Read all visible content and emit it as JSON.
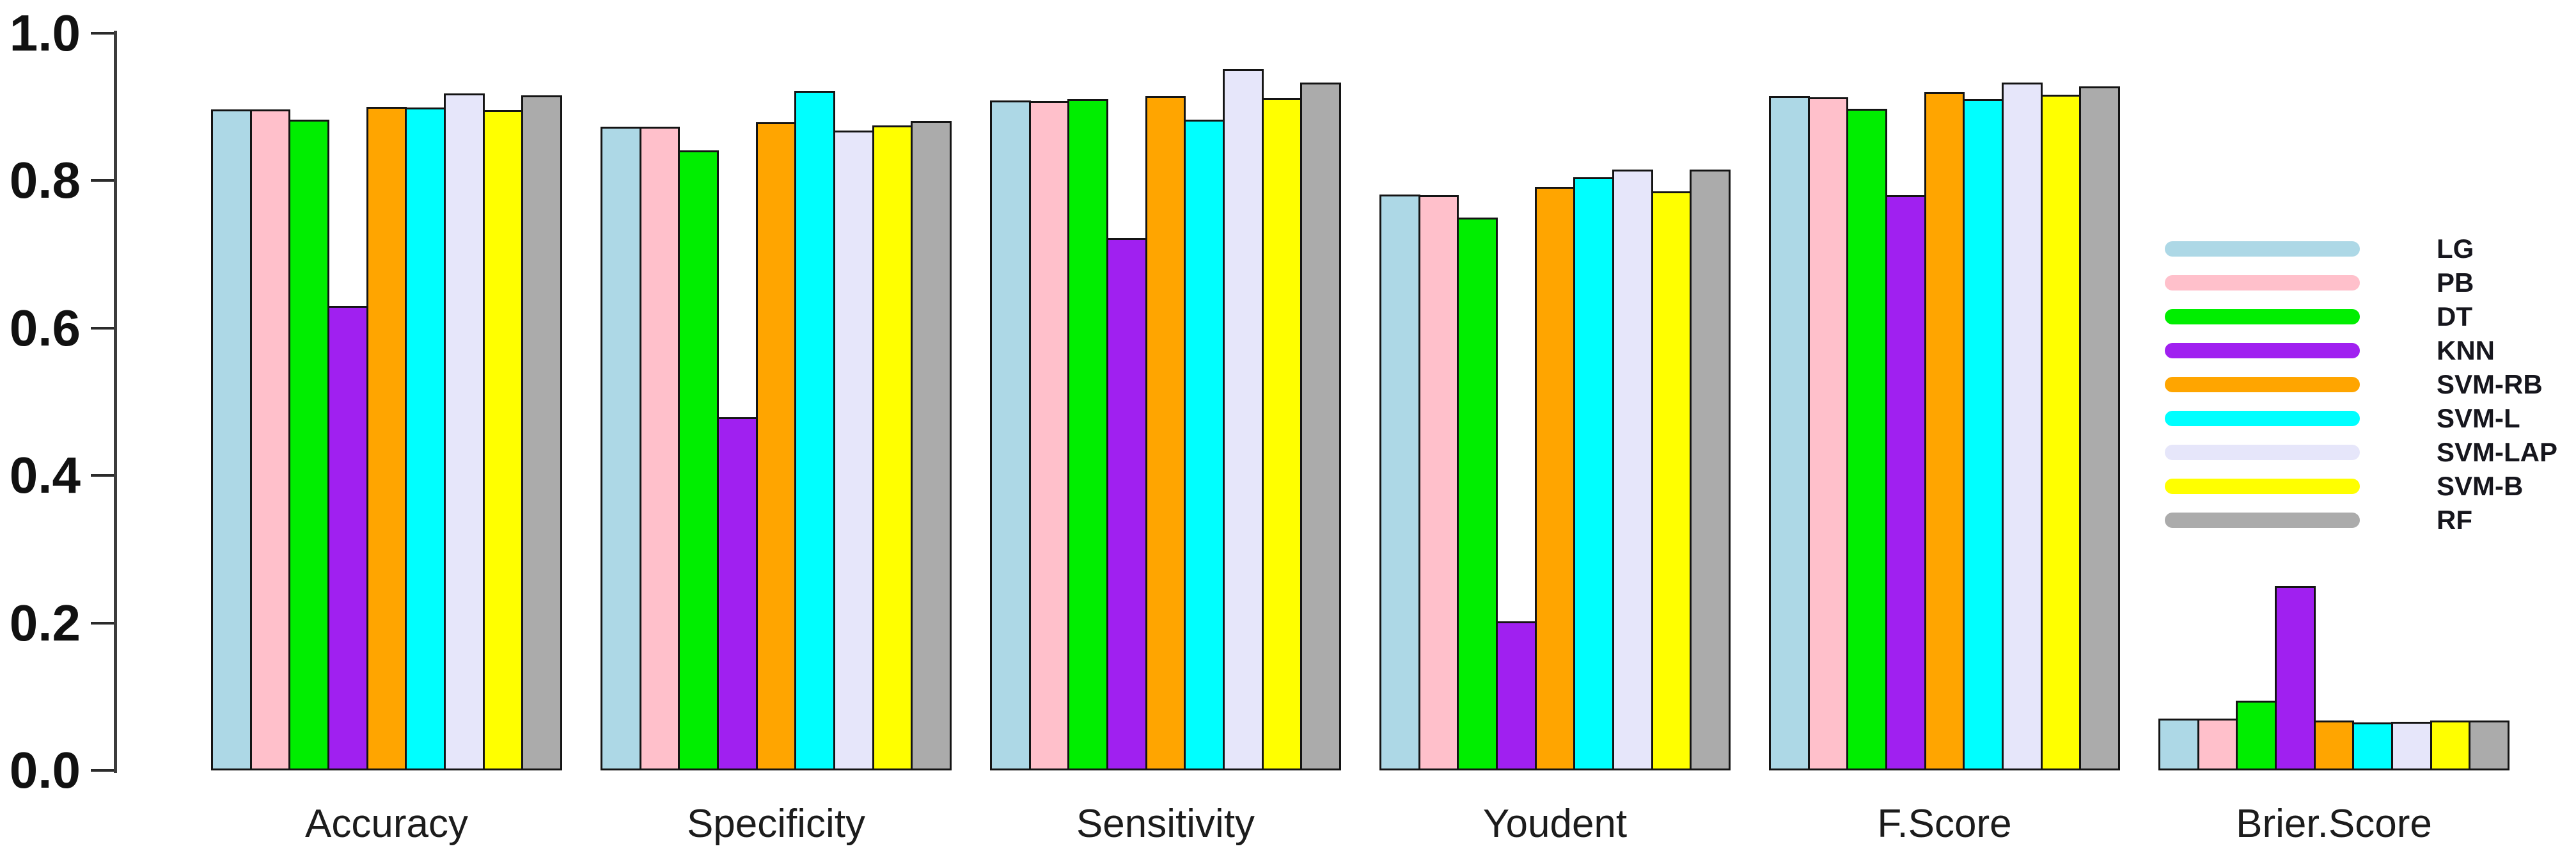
{
  "chart_data": {
    "type": "bar",
    "title": "",
    "xlabel": "",
    "ylabel": "",
    "categories": [
      "Accuracy",
      "Specificity",
      "Sensitivity",
      "Youdent",
      "F.Score",
      "Brier.Score"
    ],
    "series": [
      {
        "name": "LG",
        "color": "#ADD8E6",
        "values": [
          0.897,
          0.873,
          0.909,
          0.781,
          0.915,
          0.07
        ]
      },
      {
        "name": "PB",
        "color": "#FFC0CB",
        "values": [
          0.897,
          0.873,
          0.908,
          0.78,
          0.913,
          0.07
        ]
      },
      {
        "name": "DT",
        "color": "#00EE00",
        "values": [
          0.883,
          0.841,
          0.911,
          0.75,
          0.898,
          0.095
        ]
      },
      {
        "name": "KNN",
        "color": "#A020F0",
        "values": [
          0.63,
          0.479,
          0.722,
          0.202,
          0.78,
          0.25
        ]
      },
      {
        "name": "SVM-RB",
        "color": "#FFA500",
        "values": [
          0.9,
          0.879,
          0.915,
          0.792,
          0.92,
          0.068
        ]
      },
      {
        "name": "SVM-L",
        "color": "#00FFFF",
        "values": [
          0.899,
          0.922,
          0.883,
          0.805,
          0.911,
          0.065
        ]
      },
      {
        "name": "SVM-LAP",
        "color": "#E6E6FA",
        "values": [
          0.918,
          0.868,
          0.951,
          0.815,
          0.933,
          0.066
        ]
      },
      {
        "name": "SVM-B",
        "color": "#FFFF00",
        "values": [
          0.896,
          0.875,
          0.912,
          0.786,
          0.917,
          0.068
        ]
      },
      {
        "name": "RF",
        "color": "#ABABAB",
        "values": [
          0.916,
          0.881,
          0.933,
          0.815,
          0.928,
          0.068
        ]
      }
    ],
    "ylim": [
      0.0,
      1.0
    ],
    "yticks": [
      "0.0",
      "0.2",
      "0.4",
      "0.6",
      "0.8",
      "1.0"
    ],
    "grid": false,
    "legend_position": "right",
    "axis_color": "#3c3c3c",
    "bar_border_color": "#141414",
    "background_color": "#ffffff"
  }
}
